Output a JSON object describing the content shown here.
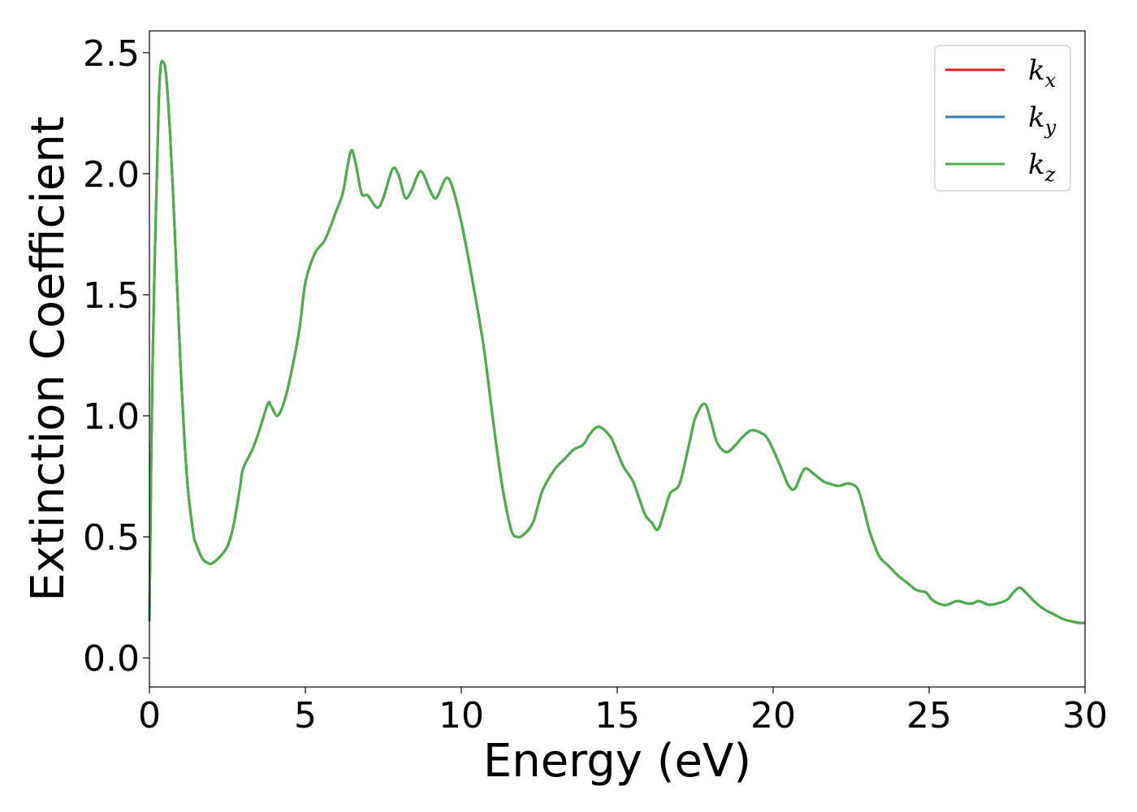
{
  "chart_data": {
    "type": "line",
    "xlabel": "Energy (eV)",
    "ylabel": "Extinction Coefficient",
    "xlim": [
      0,
      30
    ],
    "ylim": [
      -0.12,
      2.59
    ],
    "xticks": [
      0,
      5,
      10,
      15,
      20,
      25,
      30
    ],
    "xtick_labels": [
      "0",
      "5",
      "10",
      "15",
      "20",
      "25",
      "30"
    ],
    "yticks": [
      0.0,
      0.5,
      1.0,
      1.5,
      2.0,
      2.5
    ],
    "ytick_labels": [
      "0.0",
      "0.5",
      "1.0",
      "1.5",
      "2.0",
      "2.5"
    ],
    "grid": false,
    "legend_position": "top-right",
    "series": [
      {
        "name": "k",
        "subscript": "x",
        "color": "#e41a1c"
      },
      {
        "name": "k",
        "subscript": "y",
        "color": "#377eb8"
      },
      {
        "name": "k",
        "subscript": "z",
        "color": "#4daf4a"
      }
    ],
    "x": [
      0.0,
      0.1,
      0.3,
      0.45,
      0.6,
      0.8,
      1.0,
      1.2,
      1.4,
      1.5,
      1.7,
      1.9,
      2.0,
      2.2,
      2.5,
      2.7,
      2.9,
      3.0,
      3.3,
      3.5,
      3.8,
      3.9,
      4.1,
      4.3,
      4.5,
      4.8,
      5.0,
      5.3,
      5.6,
      5.8,
      6.0,
      6.2,
      6.45,
      6.6,
      6.8,
      7.0,
      7.3,
      7.5,
      7.8,
      8.0,
      8.2,
      8.4,
      8.7,
      9.0,
      9.2,
      9.5,
      9.7,
      10.0,
      10.3,
      10.7,
      11.0,
      11.3,
      11.6,
      11.8,
      12.0,
      12.3,
      12.6,
      13.0,
      13.3,
      13.6,
      13.9,
      14.1,
      14.3,
      14.5,
      14.8,
      15.0,
      15.2,
      15.5,
      15.7,
      15.9,
      16.1,
      16.3,
      16.5,
      16.7,
      17.0,
      17.3,
      17.5,
      17.8,
      18.0,
      18.2,
      18.5,
      18.8,
      19.0,
      19.3,
      19.6,
      19.8,
      20.0,
      20.3,
      20.5,
      20.7,
      21.0,
      21.3,
      21.6,
      21.8,
      22.1,
      22.4,
      22.7,
      22.9,
      23.1,
      23.4,
      23.7,
      24.0,
      24.3,
      24.6,
      24.9,
      25.1,
      25.4,
      25.6,
      25.9,
      26.2,
      26.4,
      26.6,
      26.9,
      27.2,
      27.5,
      27.7,
      27.9,
      28.1,
      28.4,
      28.7,
      29.0,
      29.3,
      29.6,
      29.8,
      30.0
    ],
    "y": [
      0.15,
      1.2,
      2.3,
      2.46,
      2.3,
      1.8,
      1.2,
      0.75,
      0.52,
      0.47,
      0.41,
      0.39,
      0.39,
      0.41,
      0.46,
      0.55,
      0.7,
      0.78,
      0.86,
      0.93,
      1.05,
      1.04,
      1.0,
      1.05,
      1.15,
      1.35,
      1.55,
      1.67,
      1.72,
      1.78,
      1.85,
      1.92,
      2.09,
      2.05,
      1.92,
      1.91,
      1.86,
      1.9,
      2.02,
      1.99,
      1.9,
      1.93,
      2.01,
      1.93,
      1.9,
      1.98,
      1.95,
      1.8,
      1.6,
      1.3,
      1.0,
      0.72,
      0.53,
      0.5,
      0.51,
      0.56,
      0.69,
      0.78,
      0.82,
      0.86,
      0.88,
      0.92,
      0.95,
      0.95,
      0.91,
      0.85,
      0.79,
      0.73,
      0.66,
      0.59,
      0.56,
      0.53,
      0.6,
      0.68,
      0.72,
      0.88,
      0.99,
      1.05,
      0.98,
      0.89,
      0.85,
      0.88,
      0.91,
      0.94,
      0.93,
      0.91,
      0.86,
      0.77,
      0.71,
      0.7,
      0.78,
      0.76,
      0.73,
      0.72,
      0.71,
      0.72,
      0.7,
      0.62,
      0.52,
      0.42,
      0.38,
      0.34,
      0.31,
      0.28,
      0.27,
      0.24,
      0.22,
      0.22,
      0.235,
      0.225,
      0.225,
      0.235,
      0.22,
      0.225,
      0.24,
      0.27,
      0.29,
      0.27,
      0.23,
      0.2,
      0.18,
      0.16,
      0.15,
      0.145,
      0.145
    ]
  }
}
